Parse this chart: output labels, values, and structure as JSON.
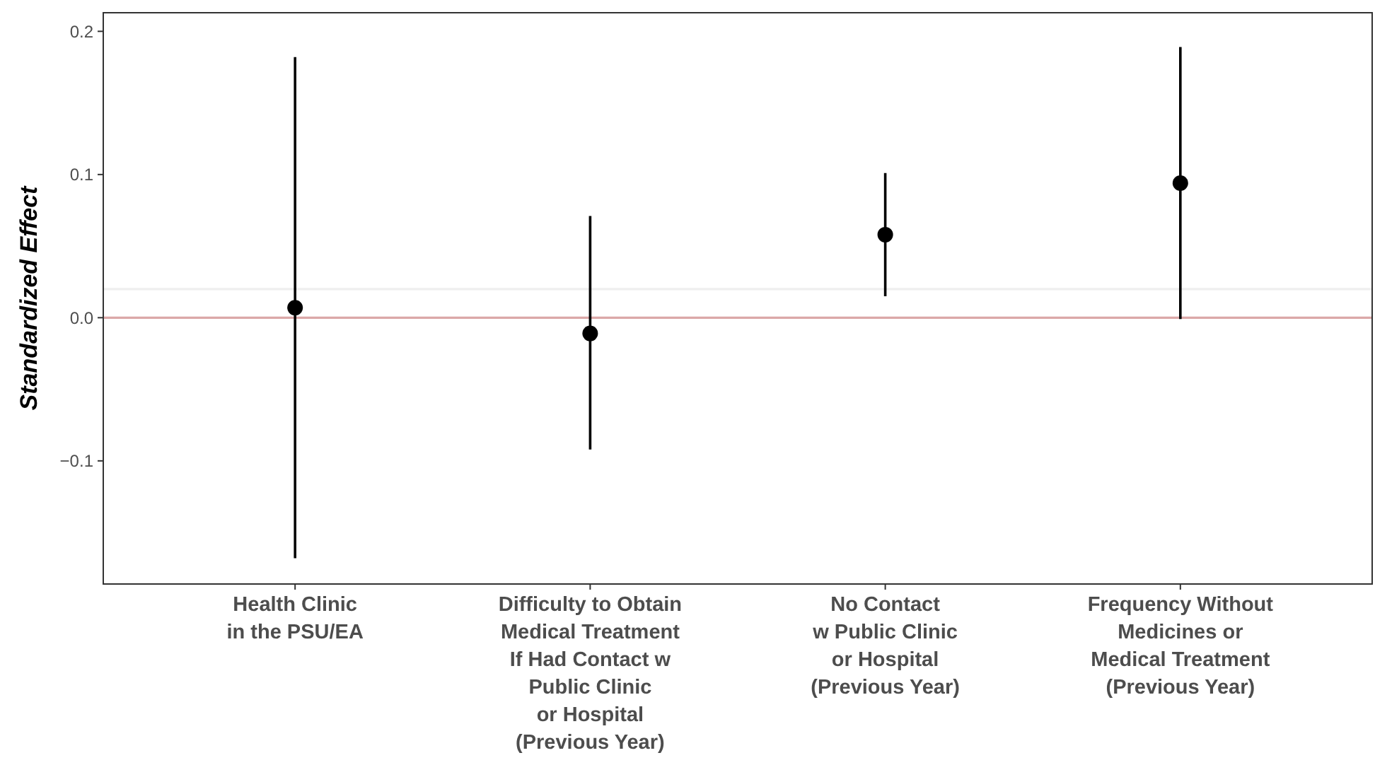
{
  "chart_data": {
    "type": "scatter",
    "ylabel": "Standardized Effect",
    "categories": [
      "Health Clinic\nin the PSU/EA",
      "Difficulty to Obtain\nMedical Treatment\nIf Had Contact w\nPublic Clinic\nor Hospital\n(Previous Year)",
      "No Contact\nw Public Clinic\nor Hospital\n(Previous Year)",
      "Frequency Without\nMedicines or\nMedical Treatment\n(Previous Year)"
    ],
    "series": [
      {
        "color": "#000000",
        "values": [
          0.007,
          -0.011,
          0.058,
          0.094
        ],
        "errors": [
          [
            -0.168,
            0.182
          ],
          [
            -0.092,
            0.071
          ],
          [
            0.015,
            0.101
          ],
          [
            -0.001,
            0.189
          ]
        ]
      }
    ],
    "ylim": [
      -0.186,
      0.213
    ],
    "yticks": [
      0.2,
      0.1,
      {
        "value": 0,
        "label": "0.0"
      },
      {
        "value": -0.1,
        "label": "−0.1"
      }
    ],
    "ref_lines": [
      {
        "axis": "y",
        "value": 0.02,
        "color": "#efefef"
      },
      {
        "axis": "y",
        "value": 0,
        "color": "#dba8a8"
      }
    ],
    "marker": "circle",
    "grid": false
  }
}
